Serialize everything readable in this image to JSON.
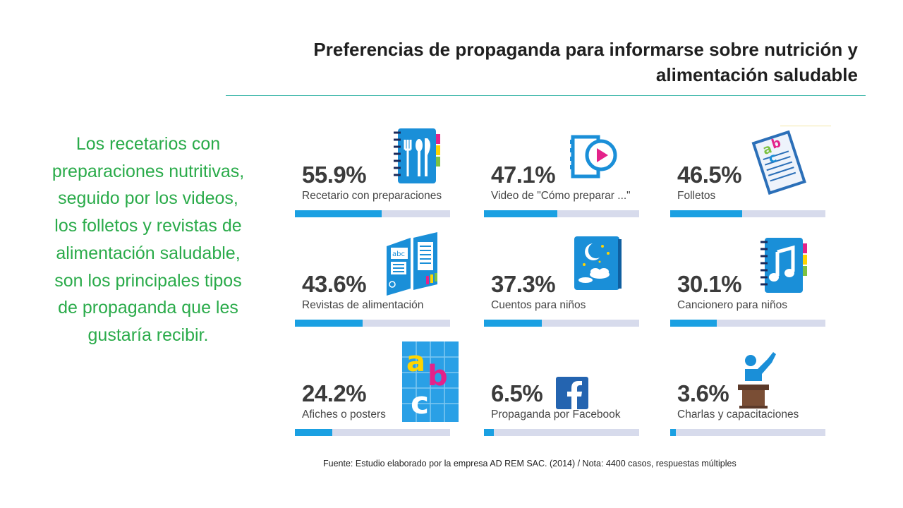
{
  "title": "Preferencias de propaganda para informarse sobre nutrición y alimentación saludable",
  "summary": "Los recetarios con preparaciones nutritivas, seguido por los videos, los folletos y revistas de alimentación saludable, son los principales tipos de propaganda que les gustaría recibir.",
  "source": "Fuente: Estudio elaborado por la empresa AD REM SAC. (2014) / Nota: 4400 casos, respuestas múltiples",
  "colors": {
    "accent_green": "#2aab4a",
    "bar_fill": "#1aa0e2",
    "bar_track": "#d7dbec",
    "rule": "#34b4a6"
  },
  "chart_data": {
    "type": "bar",
    "categories": [
      "Recetario con preparaciones",
      "Video de \"Cómo preparar ...\"",
      "Folletos",
      "Revistas de alimentación",
      "Cuentos para niños",
      "Cancionero para niños",
      "Afiches o posters",
      "Propaganda por Facebook",
      "Charlas y capacitaciones"
    ],
    "values": [
      55.9,
      47.1,
      46.5,
      43.6,
      37.3,
      30.1,
      24.2,
      6.5,
      3.6
    ],
    "value_labels": [
      "55.9%",
      "47.1%",
      "46.5%",
      "43.6%",
      "37.3%",
      "30.1%",
      "24.2%",
      "6.5%",
      "3.6%"
    ],
    "icons": [
      "recipe-book-icon",
      "video-play-icon",
      "leaflet-icon",
      "magazine-icon",
      "storybook-icon",
      "songbook-icon",
      "poster-icon",
      "facebook-icon",
      "lecture-icon"
    ],
    "ylim": [
      0,
      100
    ]
  }
}
